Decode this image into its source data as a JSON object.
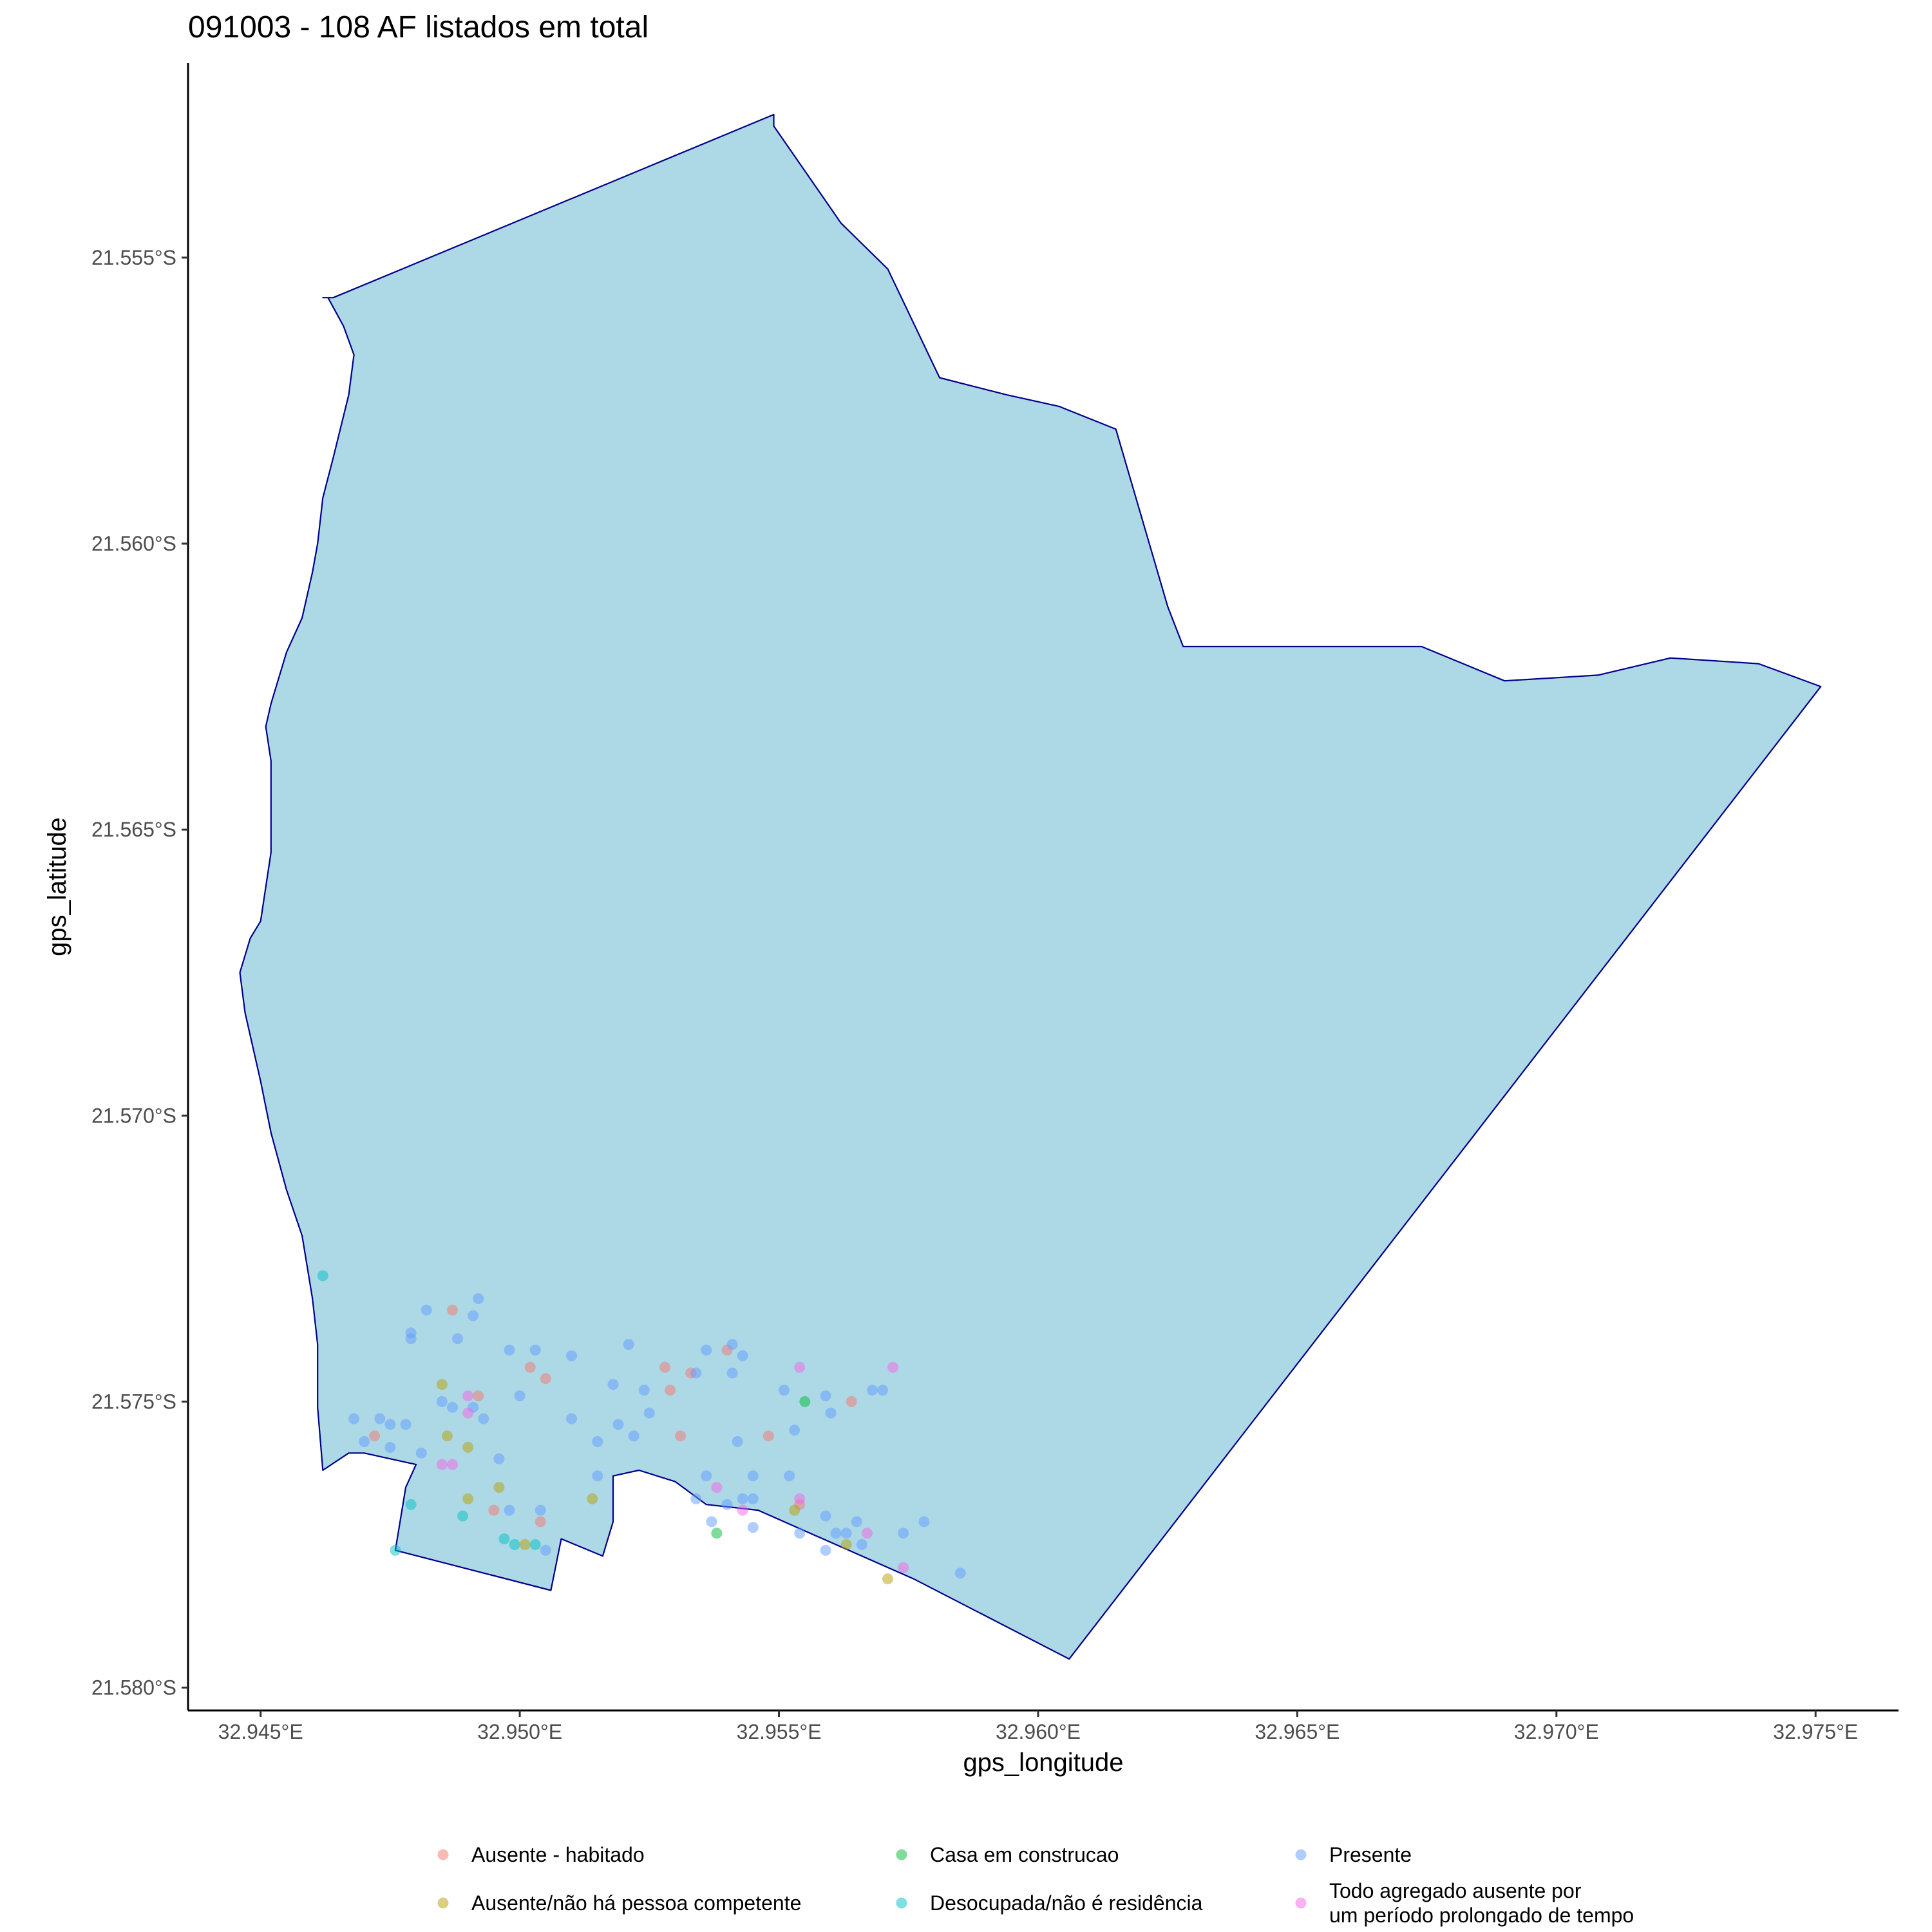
{
  "chart_data": {
    "type": "scatter",
    "title": "091003 - 108 AF listados em total",
    "xlabel": "gps_longitude",
    "ylabel": "gps_latitude",
    "xlim": [
      32.9436,
      32.9766
    ],
    "ylim": [
      -21.5804,
      -21.5516
    ],
    "x_ticks": [
      {
        "value": 32.945,
        "label": "32.945°E"
      },
      {
        "value": 32.95,
        "label": "32.950°E"
      },
      {
        "value": 32.955,
        "label": "32.955°E"
      },
      {
        "value": 32.96,
        "label": "32.960°E"
      },
      {
        "value": 32.965,
        "label": "32.965°E"
      },
      {
        "value": 32.97,
        "label": "32.970°E"
      },
      {
        "value": 32.975,
        "label": "32.975°E"
      }
    ],
    "y_ticks": [
      {
        "value": -21.555,
        "label": "21.555°S"
      },
      {
        "value": -21.56,
        "label": "21.560°S"
      },
      {
        "value": -21.565,
        "label": "21.565°S"
      },
      {
        "value": -21.57,
        "label": "21.570°S"
      },
      {
        "value": -21.575,
        "label": "21.575°S"
      },
      {
        "value": -21.58,
        "label": "21.580°S"
      }
    ],
    "grid": false,
    "legend_position": "bottom",
    "area_fill": "#add8e6",
    "area_stroke": "#00008b",
    "boundary": [
      [
        32.9549,
        -21.5527
      ],
      [
        32.9562,
        -21.5544
      ],
      [
        32.9571,
        -21.5552
      ],
      [
        32.9581,
        -21.5571
      ],
      [
        32.9594,
        -21.5574
      ],
      [
        32.9604,
        -21.5576
      ],
      [
        32.9615,
        -21.558
      ],
      [
        32.9625,
        -21.5611
      ],
      [
        32.9628,
        -21.5618
      ],
      [
        32.9674,
        -21.5618
      ],
      [
        32.969,
        -21.5624
      ],
      [
        32.9708,
        -21.5623
      ],
      [
        32.9722,
        -21.562
      ],
      [
        32.9739,
        -21.5621
      ],
      [
        32.9751,
        -21.5625
      ],
      [
        32.9606,
        -21.5795
      ],
      [
        32.9576,
        -21.5781
      ],
      [
        32.9556,
        -21.5773
      ],
      [
        32.9546,
        -21.5769
      ],
      [
        32.9536,
        -21.5768
      ],
      [
        32.953,
        -21.5764
      ],
      [
        32.9523,
        -21.5762
      ],
      [
        32.9518,
        -21.5763
      ],
      [
        32.9518,
        -21.5771
      ],
      [
        32.9516,
        -21.5777
      ],
      [
        32.9508,
        -21.5774
      ],
      [
        32.9506,
        -21.5783
      ],
      [
        32.9476,
        -21.5776
      ],
      [
        32.9478,
        -21.5765
      ],
      [
        32.948,
        -21.5761
      ],
      [
        32.947,
        -21.5759
      ],
      [
        32.9467,
        -21.5759
      ],
      [
        32.9462,
        -21.5762
      ],
      [
        32.9461,
        -21.5751
      ],
      [
        32.9461,
        -21.574
      ],
      [
        32.946,
        -21.5732
      ],
      [
        32.9458,
        -21.5721
      ],
      [
        32.9455,
        -21.5713
      ],
      [
        32.9452,
        -21.5703
      ],
      [
        32.945,
        -21.5694
      ],
      [
        32.9447,
        -21.5682
      ],
      [
        32.9446,
        -21.5675
      ],
      [
        32.9448,
        -21.5669
      ],
      [
        32.945,
        -21.5666
      ],
      [
        32.9452,
        -21.5654
      ],
      [
        32.9452,
        -21.5647
      ],
      [
        32.9452,
        -21.5638
      ],
      [
        32.9451,
        -21.5632
      ],
      [
        32.9452,
        -21.5628
      ],
      [
        32.9455,
        -21.5619
      ],
      [
        32.9458,
        -21.5613
      ],
      [
        32.946,
        -21.5605
      ],
      [
        32.9461,
        -21.56
      ],
      [
        32.9462,
        -21.5592
      ],
      [
        32.9464,
        -21.5585
      ],
      [
        32.9467,
        -21.5574
      ],
      [
        32.9468,
        -21.5567
      ],
      [
        32.9466,
        -21.5562
      ],
      [
        32.9463,
        -21.5557
      ],
      [
        32.9462,
        -21.5557
      ],
      [
        32.9464,
        -21.5557
      ],
      [
        32.9549,
        -21.5525
      ]
    ],
    "series": [
      {
        "name": "Ausente - habitado",
        "color": "#f8766d",
        "points": [
          [
            32.9472,
            -21.5756
          ],
          [
            32.9487,
            -21.5734
          ],
          [
            32.9492,
            -21.5749
          ],
          [
            32.9495,
            -21.5769
          ],
          [
            32.9502,
            -21.5744
          ],
          [
            32.9504,
            -21.5771
          ],
          [
            32.9505,
            -21.5746
          ],
          [
            32.9528,
            -21.5744
          ],
          [
            32.9529,
            -21.5748
          ],
          [
            32.9531,
            -21.5756
          ],
          [
            32.9533,
            -21.5745
          ],
          [
            32.954,
            -21.5741
          ],
          [
            32.9548,
            -21.5756
          ],
          [
            32.9554,
            -21.5768
          ],
          [
            32.9564,
            -21.575
          ]
        ]
      },
      {
        "name": "Ausente/não há pessoa competente",
        "color": "#b79f00",
        "points": [
          [
            32.9485,
            -21.5747
          ],
          [
            32.9486,
            -21.5756
          ],
          [
            32.949,
            -21.5758
          ],
          [
            32.949,
            -21.5767
          ],
          [
            32.9496,
            -21.5765
          ],
          [
            32.9501,
            -21.5775
          ],
          [
            32.9514,
            -21.5767
          ],
          [
            32.9553,
            -21.5769
          ],
          [
            32.9563,
            -21.5775
          ],
          [
            32.9571,
            -21.5781
          ]
        ]
      },
      {
        "name": "Casa em construcao",
        "color": "#00ba38",
        "points": [
          [
            32.9538,
            -21.5773
          ],
          [
            32.9555,
            -21.575
          ]
        ]
      },
      {
        "name": "Desocupada/não é residência",
        "color": "#00bfc4",
        "points": [
          [
            32.9462,
            -21.5728
          ],
          [
            32.9476,
            -21.5776
          ],
          [
            32.9479,
            -21.5768
          ],
          [
            32.9489,
            -21.577
          ],
          [
            32.9497,
            -21.5774
          ],
          [
            32.9499,
            -21.5775
          ],
          [
            32.9503,
            -21.5775
          ]
        ]
      },
      {
        "name": "Presente",
        "color": "#619cff",
        "points": [
          [
            32.9468,
            -21.5753
          ],
          [
            32.947,
            -21.5757
          ],
          [
            32.9473,
            -21.5753
          ],
          [
            32.9475,
            -21.5754
          ],
          [
            32.9475,
            -21.5758
          ],
          [
            32.9478,
            -21.5754
          ],
          [
            32.9479,
            -21.5738
          ],
          [
            32.9479,
            -21.5739
          ],
          [
            32.9481,
            -21.5759
          ],
          [
            32.9482,
            -21.5734
          ],
          [
            32.9485,
            -21.575
          ],
          [
            32.9487,
            -21.5751
          ],
          [
            32.9488,
            -21.5739
          ],
          [
            32.9491,
            -21.5735
          ],
          [
            32.9491,
            -21.5751
          ],
          [
            32.9492,
            -21.5732
          ],
          [
            32.9493,
            -21.5753
          ],
          [
            32.9496,
            -21.576
          ],
          [
            32.9498,
            -21.5741
          ],
          [
            32.9498,
            -21.5769
          ],
          [
            32.95,
            -21.5749
          ],
          [
            32.9503,
            -21.5741
          ],
          [
            32.9504,
            -21.5769
          ],
          [
            32.9505,
            -21.5776
          ],
          [
            32.951,
            -21.5742
          ],
          [
            32.951,
            -21.5753
          ],
          [
            32.9515,
            -21.5757
          ],
          [
            32.9515,
            -21.5763
          ],
          [
            32.9518,
            -21.5747
          ],
          [
            32.9519,
            -21.5754
          ],
          [
            32.9521,
            -21.574
          ],
          [
            32.9522,
            -21.5756
          ],
          [
            32.9524,
            -21.5748
          ],
          [
            32.9525,
            -21.5752
          ],
          [
            32.9534,
            -21.5745
          ],
          [
            32.9534,
            -21.5767
          ],
          [
            32.9536,
            -21.5741
          ],
          [
            32.9536,
            -21.5763
          ],
          [
            32.9537,
            -21.5771
          ],
          [
            32.954,
            -21.5768
          ],
          [
            32.9541,
            -21.574
          ],
          [
            32.9541,
            -21.5745
          ],
          [
            32.9542,
            -21.5757
          ],
          [
            32.9543,
            -21.5742
          ],
          [
            32.9543,
            -21.5767
          ],
          [
            32.9545,
            -21.5763
          ],
          [
            32.9545,
            -21.5767
          ],
          [
            32.9545,
            -21.5772
          ],
          [
            32.9551,
            -21.5748
          ],
          [
            32.9552,
            -21.5763
          ],
          [
            32.9553,
            -21.5755
          ],
          [
            32.9554,
            -21.5773
          ],
          [
            32.9559,
            -21.5749
          ],
          [
            32.9559,
            -21.577
          ],
          [
            32.9559,
            -21.5776
          ],
          [
            32.956,
            -21.5752
          ],
          [
            32.9561,
            -21.5773
          ],
          [
            32.9563,
            -21.5773
          ],
          [
            32.9565,
            -21.5771
          ],
          [
            32.9566,
            -21.5775
          ],
          [
            32.9568,
            -21.5748
          ],
          [
            32.957,
            -21.5748
          ],
          [
            32.9574,
            -21.5773
          ],
          [
            32.9578,
            -21.5771
          ],
          [
            32.9585,
            -21.578
          ]
        ]
      },
      {
        "name": "Todo agregado ausente por\num período prolongado de tempo",
        "color": "#f564e3",
        "points": [
          [
            32.9485,
            -21.5761
          ],
          [
            32.9487,
            -21.5761
          ],
          [
            32.949,
            -21.5749
          ],
          [
            32.949,
            -21.5752
          ],
          [
            32.9538,
            -21.5765
          ],
          [
            32.9543,
            -21.5769
          ],
          [
            32.9554,
            -21.5744
          ],
          [
            32.9554,
            -21.5767
          ],
          [
            32.9567,
            -21.5773
          ],
          [
            32.9572,
            -21.5744
          ],
          [
            32.9574,
            -21.5779
          ]
        ]
      }
    ]
  }
}
